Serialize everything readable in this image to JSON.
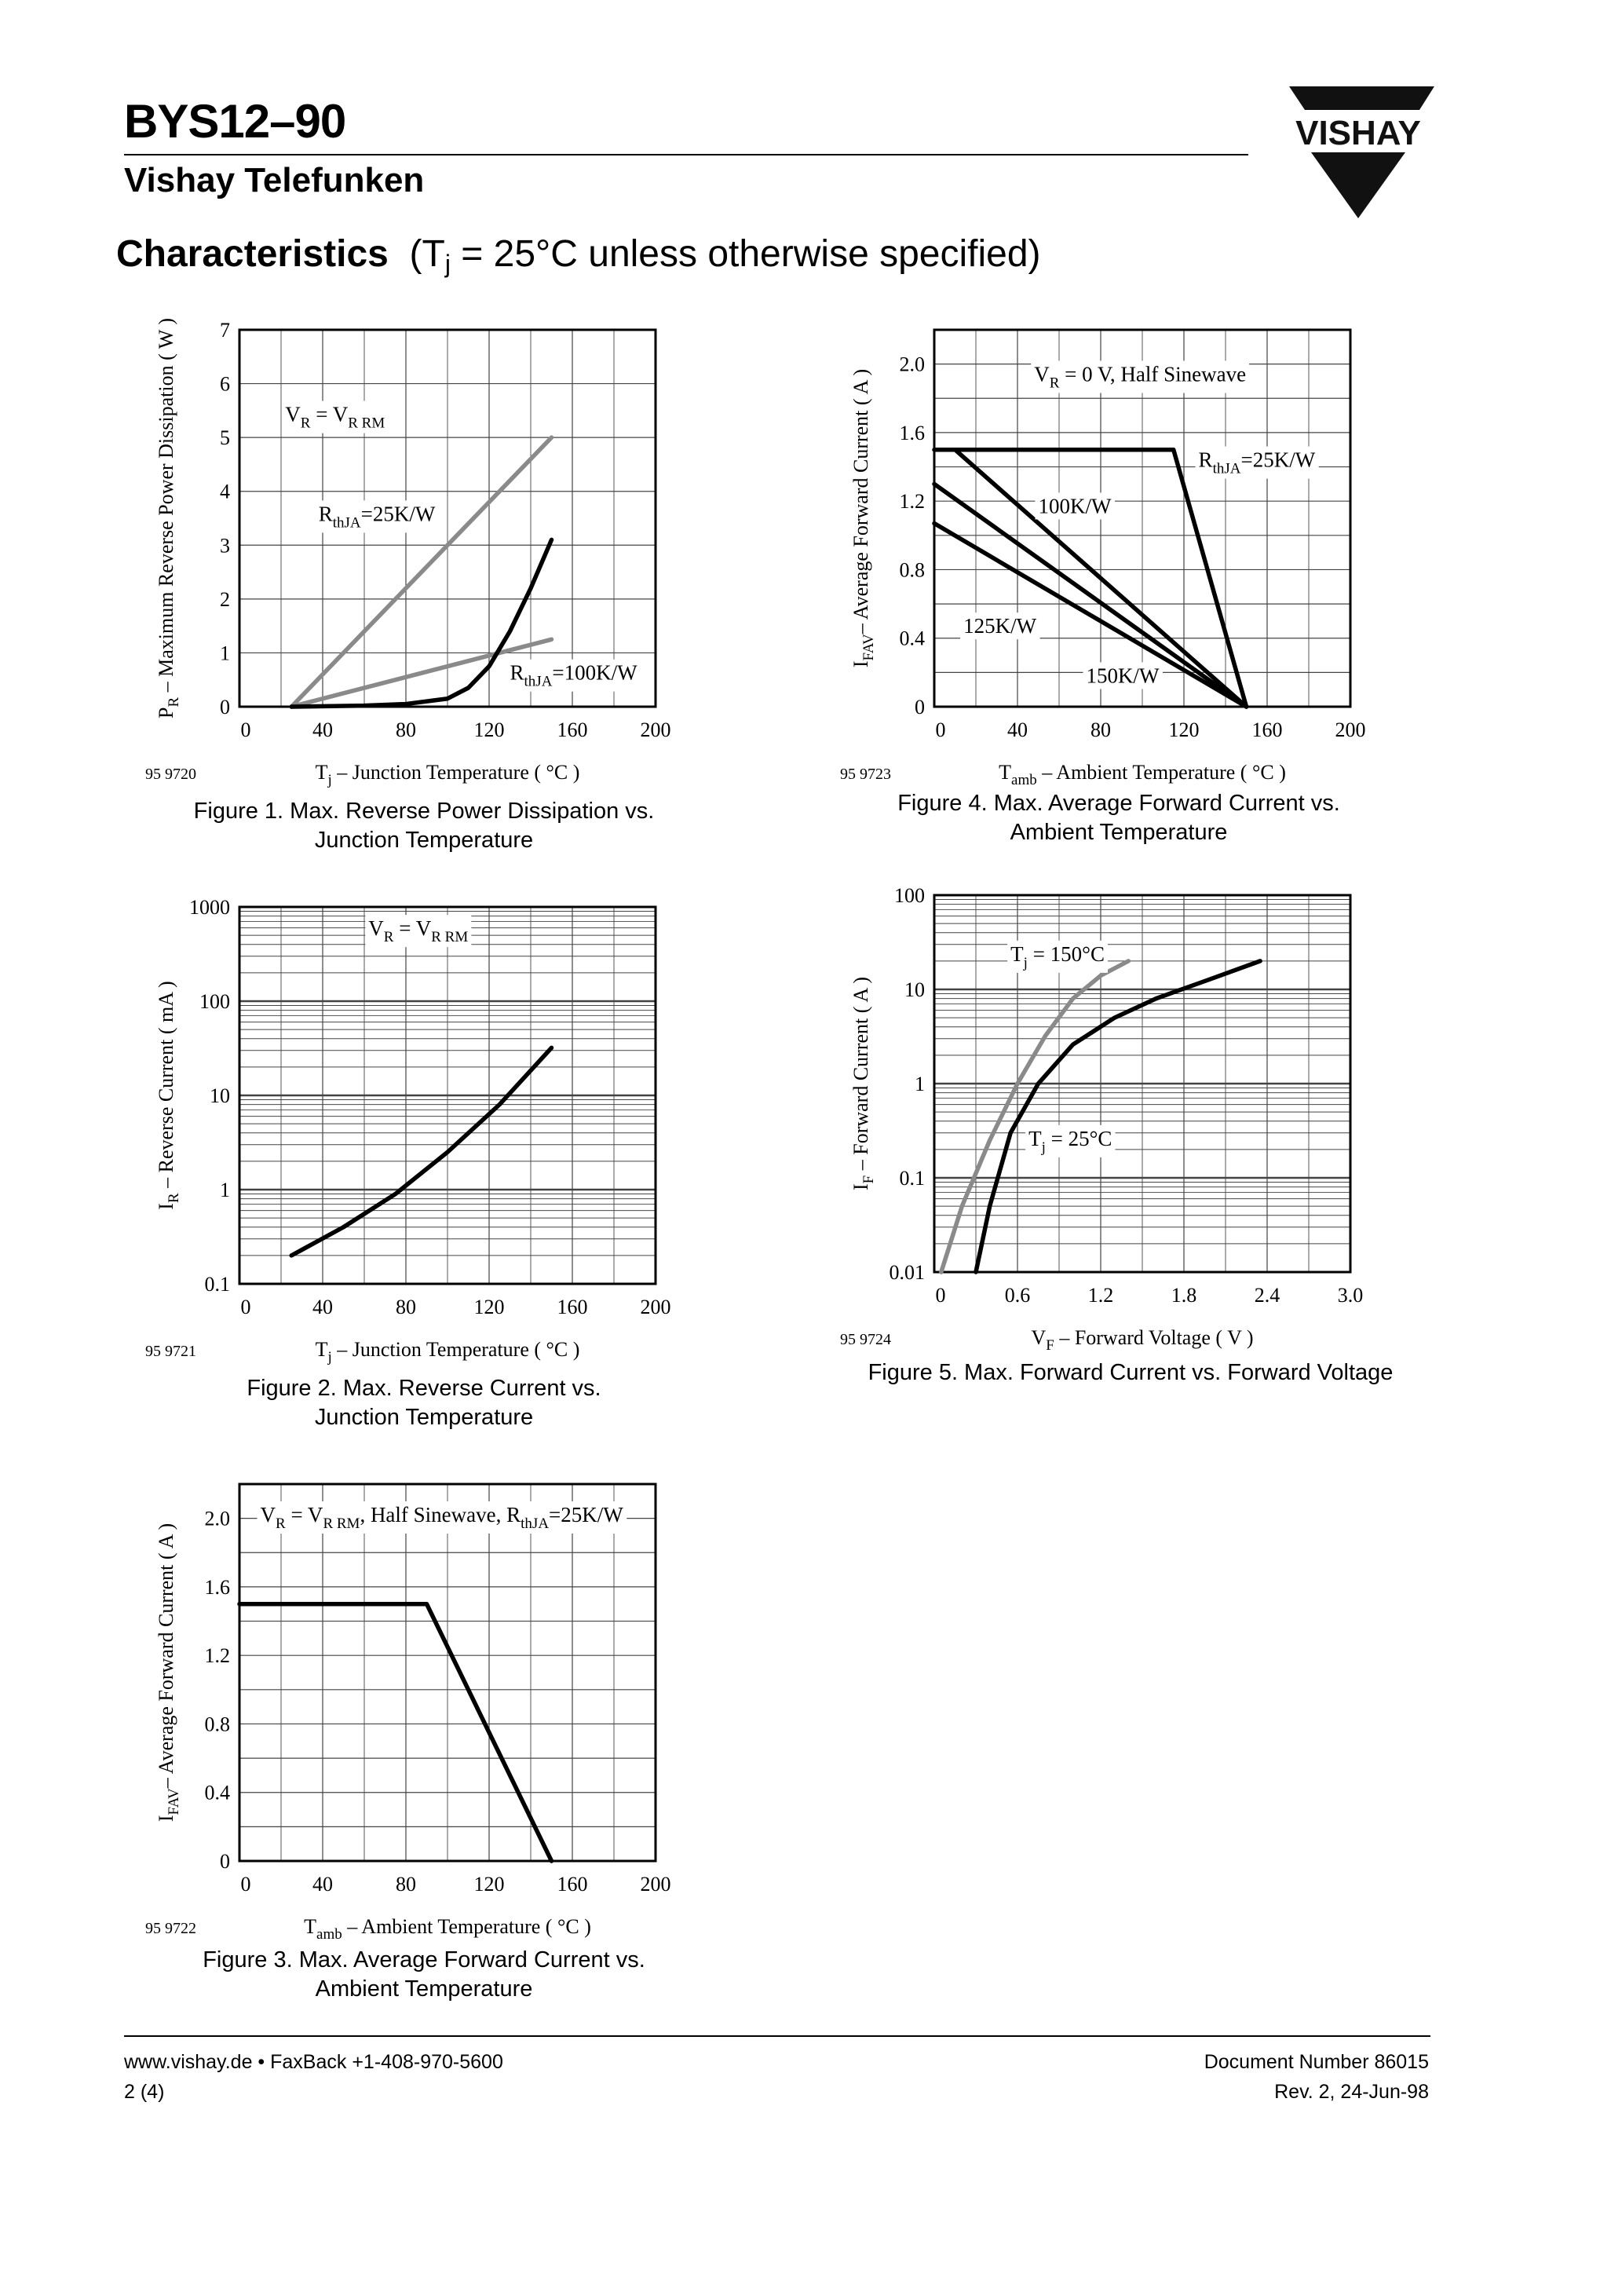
{
  "header": {
    "part_number": "BYS12–90",
    "manufacturer": "Vishay Telefunken",
    "logo_text": "VISHAY",
    "section_title": "Characteristics",
    "conditions_prefix": "(T",
    "conditions_sub": "j",
    "conditions_suffix": " = 25°C unless otherwise specified)"
  },
  "footer": {
    "website": "www.vishay.de • FaxBack +1-408-970-5600",
    "page": "2 (4)",
    "doc_number": "Document Number 86015",
    "revision": "Rev. 2, 24-Jun-98"
  },
  "colors": {
    "black_curve": "#000000",
    "gray_curve": "#8a8a8a",
    "grid": "#444444"
  },
  "figures": [
    {
      "id": "fig1",
      "caption_line1": "Figure 1.  Max. Reverse Power Dissipation vs.",
      "caption_line2": "Junction Temperature",
      "code": "95 9720",
      "ylabel": {
        "main": "P",
        "sub": "R",
        "rest": " – Maximum Reverse Power Dissipation ( W )"
      },
      "xlabel": {
        "main": "T",
        "sub": "j",
        "rest": " – Junction Temperature ( °C )"
      },
      "chart_data": {
        "type": "line",
        "xlim": [
          0,
          200
        ],
        "ylim": [
          0,
          7
        ],
        "yscale": "linear",
        "xticks": [
          "0",
          "40",
          "80",
          "120",
          "160",
          "200"
        ],
        "yticks": [
          "0",
          "1",
          "2",
          "3",
          "4",
          "5",
          "6",
          "7"
        ],
        "grid": true,
        "series": [
          {
            "name": "R thJA=25K/W",
            "color": "gray",
            "x": [
              25,
              150
            ],
            "y": [
              0,
              5
            ]
          },
          {
            "name": "R thJA=100K/W",
            "color": "gray",
            "x": [
              25,
              150
            ],
            "y": [
              0,
              1.25
            ]
          },
          {
            "name": "",
            "color": "black",
            "x": [
              25,
              60,
              80,
              100,
              110,
              120,
              130,
              140,
              150
            ],
            "y": [
              0,
              0.02,
              0.05,
              0.15,
              0.35,
              0.75,
              1.4,
              2.2,
              3.1
            ]
          }
        ],
        "annotations": [
          {
            "parts": [
              [
                "V",
                ""
              ],
              [
                "R",
                "sub"
              ],
              [
                " = V",
                ""
              ],
              [
                "R RM",
                "sub"
              ]
            ],
            "x": 22,
            "y": 5.3
          },
          {
            "parts": [
              [
                "R",
                ""
              ],
              [
                "thJA",
                "sub"
              ],
              [
                "=25K/W",
                ""
              ]
            ],
            "x": 38,
            "y": 3.45
          },
          {
            "parts": [
              [
                "R",
                ""
              ],
              [
                "thJA",
                "sub"
              ],
              [
                "=100K/W",
                ""
              ]
            ],
            "x": 130,
            "y": 0.5
          }
        ]
      }
    },
    {
      "id": "fig2",
      "caption_line1": "Figure 2.  Max. Reverse Current vs.",
      "caption_line2": "Junction Temperature",
      "code": "95 9721",
      "ylabel": {
        "main": "I",
        "sub": "R",
        "rest": " – Reverse Current ( mA )"
      },
      "xlabel": {
        "main": "T",
        "sub": "j",
        "rest": " – Junction Temperature ( °C )"
      },
      "chart_data": {
        "type": "line",
        "xlim": [
          0,
          200
        ],
        "ylim": [
          0.1,
          1000
        ],
        "yscale": "log",
        "xticks": [
          "0",
          "40",
          "80",
          "120",
          "160",
          "200"
        ],
        "yticks": [
          "0.1",
          "1",
          "10",
          "100",
          "1000"
        ],
        "ytick_values": [
          0.1,
          1,
          10,
          100,
          1000
        ],
        "grid": true,
        "series": [
          {
            "name": "",
            "color": "black",
            "x": [
              25,
              50,
              75,
              100,
              125,
              150
            ],
            "y": [
              0.2,
              0.4,
              0.9,
              2.5,
              8,
              32
            ]
          }
        ],
        "annotations": [
          {
            "parts": [
              [
                "V",
                ""
              ],
              [
                "R",
                "sub"
              ],
              [
                " = V",
                ""
              ],
              [
                "R RM",
                "sub"
              ]
            ],
            "x": 62,
            "y": 500
          }
        ]
      }
    },
    {
      "id": "fig3",
      "caption_line1": "Figure 3.  Max. Average Forward Current vs.",
      "caption_line2": "Ambient Temperature",
      "code": "95 9722",
      "ylabel": {
        "main": "I",
        "sub": "FAV",
        "rest": "– Average Forward Current ( A )"
      },
      "xlabel": {
        "main": "T",
        "sub": "amb",
        "rest": " – Ambient Temperature ( °C )"
      },
      "chart_data": {
        "type": "line",
        "xlim": [
          0,
          200
        ],
        "ylim": [
          0,
          2.2
        ],
        "yscale": "linear",
        "xticks": [
          "0",
          "40",
          "80",
          "120",
          "160",
          "200"
        ],
        "yticks": [
          "0",
          "0.4",
          "0.8",
          "1.2",
          "1.6",
          "2.0"
        ],
        "ytick_values": [
          0,
          0.4,
          0.8,
          1.2,
          1.6,
          2.0
        ],
        "grid": true,
        "series": [
          {
            "name": "",
            "color": "black",
            "x": [
              0,
              90,
              150
            ],
            "y": [
              1.5,
              1.5,
              0
            ]
          }
        ],
        "annotations": [
          {
            "parts": [
              [
                "V",
                ""
              ],
              [
                "R",
                "sub"
              ],
              [
                " = V",
                ""
              ],
              [
                "R RM",
                "sub"
              ],
              [
                ", Half Sinewave, R",
                ""
              ],
              [
                "thJA",
                "sub"
              ],
              [
                "=25K/W",
                ""
              ]
            ],
            "x": 10,
            "y": 1.98
          }
        ]
      }
    },
    {
      "id": "fig4",
      "caption_line1": "Figure 4.  Max. Average Forward Current vs.",
      "caption_line2": "Ambient Temperature",
      "code": "95 9723",
      "ylabel": {
        "main": "I",
        "sub": "FAV",
        "rest": "– Average Forward Current ( A )"
      },
      "xlabel": {
        "main": "T",
        "sub": "amb",
        "rest": " – Ambient Temperature ( °C )"
      },
      "chart_data": {
        "type": "line",
        "xlim": [
          0,
          200
        ],
        "ylim": [
          0,
          2.2
        ],
        "yscale": "linear",
        "xticks": [
          "0",
          "40",
          "80",
          "120",
          "160",
          "200"
        ],
        "yticks": [
          "0",
          "0.4",
          "0.8",
          "1.2",
          "1.6",
          "2.0"
        ],
        "ytick_values": [
          0,
          0.4,
          0.8,
          1.2,
          1.6,
          2.0
        ],
        "grid": true,
        "series": [
          {
            "name": "R thJA=25K/W",
            "color": "black",
            "x": [
              0,
              115,
              150
            ],
            "y": [
              1.5,
              1.5,
              0
            ]
          },
          {
            "name": "100K/W",
            "color": "black",
            "x": [
              10,
              150
            ],
            "y": [
              1.5,
              0
            ]
          },
          {
            "name": "125K/W",
            "color": "black",
            "x": [
              0,
              150
            ],
            "y": [
              1.3,
              0
            ]
          },
          {
            "name": "150K/W",
            "color": "black",
            "x": [
              0,
              150
            ],
            "y": [
              1.07,
              0
            ]
          }
        ],
        "annotations": [
          {
            "parts": [
              [
                "V",
                ""
              ],
              [
                "R",
                "sub"
              ],
              [
                " = 0 V, Half Sinewave",
                ""
              ]
            ],
            "x": 48,
            "y": 1.9
          },
          {
            "parts": [
              [
                "R",
                ""
              ],
              [
                "thJA",
                "sub"
              ],
              [
                "=25K/W",
                ""
              ]
            ],
            "x": 127,
            "y": 1.4
          },
          {
            "parts": [
              [
                "100K/W",
                ""
              ]
            ],
            "x": 50,
            "y": 1.13
          },
          {
            "parts": [
              [
                "125K/W",
                ""
              ]
            ],
            "x": 14,
            "y": 0.43
          },
          {
            "parts": [
              [
                "150K/W",
                ""
              ]
            ],
            "x": 73,
            "y": 0.14
          }
        ]
      }
    },
    {
      "id": "fig5",
      "caption_line1": "Figure 5.  Max. Forward Current vs. Forward Voltage",
      "caption_line2": "",
      "code": "95 9724",
      "ylabel": {
        "main": "I",
        "sub": "F",
        "rest": " – Forward Current ( A )"
      },
      "xlabel": {
        "main": "V",
        "sub": "F",
        "rest": " – Forward Voltage ( V )"
      },
      "chart_data": {
        "type": "line",
        "xlim": [
          0,
          3.0
        ],
        "ylim": [
          0.01,
          100
        ],
        "yscale": "log",
        "xticks": [
          "0",
          "0.6",
          "1.2",
          "1.8",
          "2.4",
          "3.0"
        ],
        "yticks": [
          "0.01",
          "0.1",
          "1",
          "10",
          "100"
        ],
        "ytick_values": [
          0.01,
          0.1,
          1,
          10,
          100
        ],
        "grid": true,
        "series": [
          {
            "name": "Tj=150°C",
            "color": "gray",
            "x": [
              0.05,
              0.2,
              0.4,
              0.6,
              0.8,
              1.0,
              1.2,
              1.4
            ],
            "y": [
              0.01,
              0.05,
              0.25,
              1,
              3.2,
              8,
              14,
              20
            ]
          },
          {
            "name": "Tj=25°C",
            "color": "black",
            "x": [
              0.3,
              0.4,
              0.55,
              0.75,
              1.0,
              1.3,
              1.6,
              2.0,
              2.35
            ],
            "y": [
              0.01,
              0.05,
              0.3,
              1,
              2.6,
              5,
              8,
              13,
              20
            ]
          }
        ],
        "annotations": [
          {
            "parts": [
              [
                "T",
                ""
              ],
              [
                "j",
                "sub"
              ],
              [
                " = 150°C",
                ""
              ]
            ],
            "x": 0.55,
            "y": 20
          },
          {
            "parts": [
              [
                "T",
                ""
              ],
              [
                "j",
                "sub"
              ],
              [
                " = 25°C",
                ""
              ]
            ],
            "x": 0.68,
            "y": 0.22
          }
        ]
      }
    }
  ]
}
